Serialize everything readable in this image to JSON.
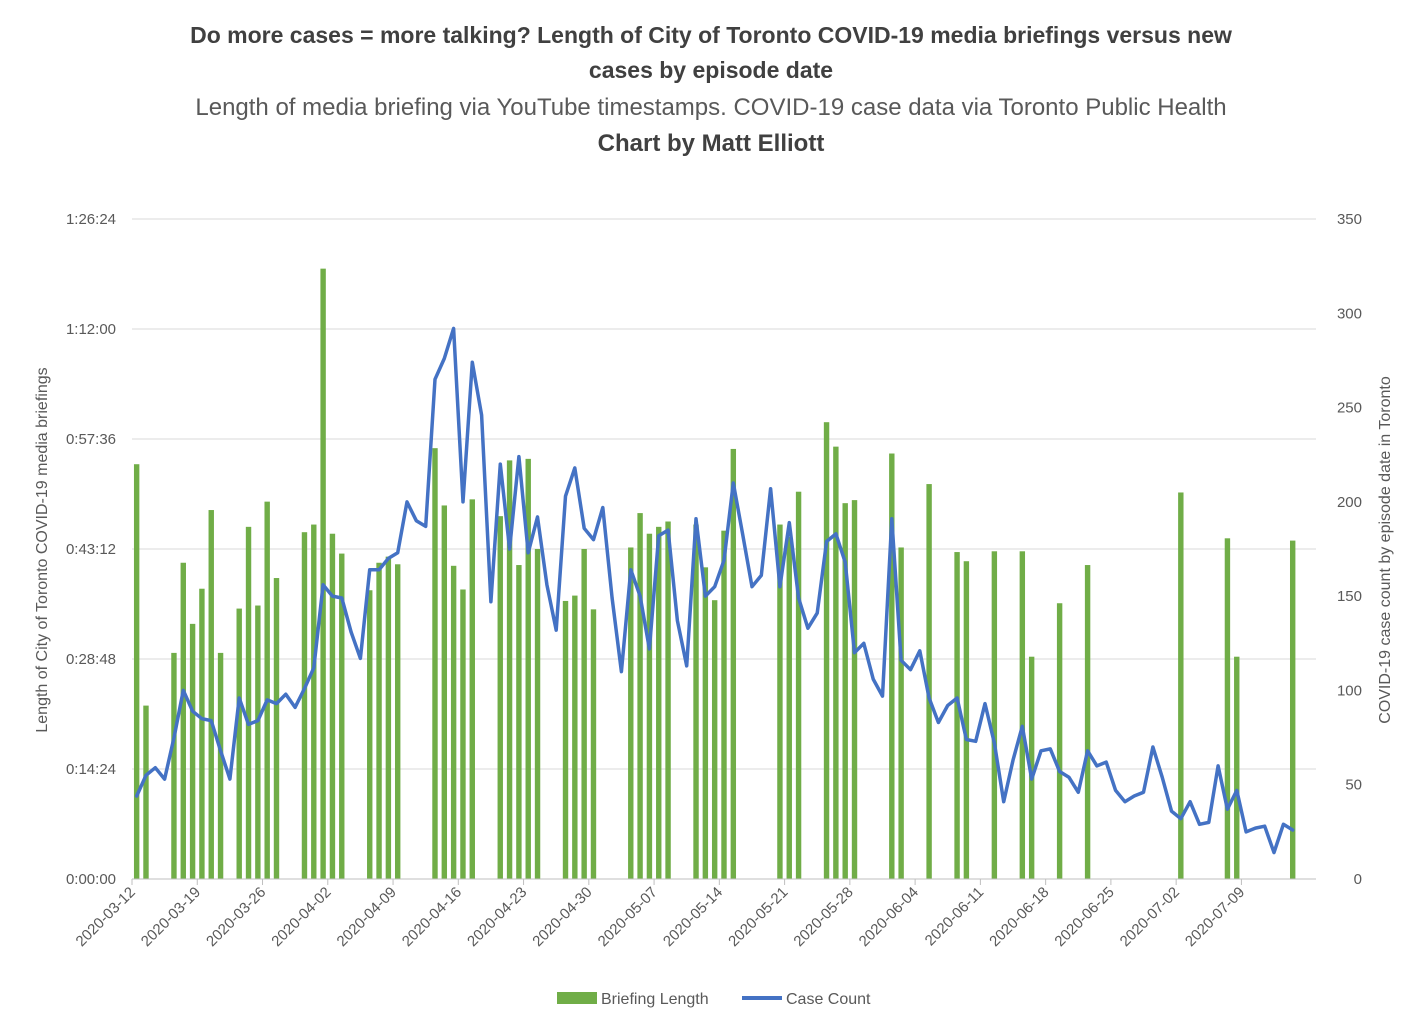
{
  "chart_data": {
    "type": "bar",
    "title": "Do more cases = more talking? Length of City of Toronto COVID-19 media briefings versus new cases by episode date",
    "subtitle": "Length of media briefing via YouTube timestamps. COVID-19 case data via Toronto Public Health",
    "credit": "Chart by Matt Elliott",
    "y_left_label": "Length of City of Toronto COVID-19 media briefings",
    "y_right_label": "COVID-19 case count by episode date in Toronto",
    "y_left_ticks": [
      "0:00:00",
      "0:14:24",
      "0:28:48",
      "0:43:12",
      "0:57:36",
      "1:12:00",
      "1:26:24"
    ],
    "y_left_range_minutes": [
      0,
      86.4
    ],
    "y_right_ticks": [
      "0",
      "50",
      "100",
      "150",
      "200",
      "250",
      "300",
      "350"
    ],
    "y_right_range": [
      0,
      350
    ],
    "x_ticks": [
      "2020-03-12",
      "2020-03-19",
      "2020-03-26",
      "2020-04-02",
      "2020-04-09",
      "2020-04-16",
      "2020-04-23",
      "2020-04-30",
      "2020-05-07",
      "2020-05-14",
      "2020-05-21",
      "2020-05-28",
      "2020-06-04",
      "2020-06-11",
      "2020-06-18",
      "2020-06-25",
      "2020-07-02",
      "2020-07-09"
    ],
    "x_range": [
      "2020-03-12",
      "2020-07-16"
    ],
    "grid": true,
    "legend_position": "bottom",
    "colors": {
      "bars": "#70ad47",
      "line": "#4472c4",
      "grid": "#d9d9d9",
      "axis": "#bfbfbf"
    },
    "series": [
      {
        "name": "Briefing Length",
        "type": "bar",
        "axis": "left",
        "unit": "minutes",
        "points": [
          [
            "2020-03-12",
            54.3
          ],
          [
            "2020-03-13",
            22.7
          ],
          [
            "2020-03-16",
            29.6
          ],
          [
            "2020-03-17",
            41.4
          ],
          [
            "2020-03-18",
            33.4
          ],
          [
            "2020-03-19",
            38.0
          ],
          [
            "2020-03-20",
            48.3
          ],
          [
            "2020-03-21",
            29.6
          ],
          [
            "2020-03-23",
            35.4
          ],
          [
            "2020-03-24",
            46.1
          ],
          [
            "2020-03-25",
            35.8
          ],
          [
            "2020-03-26",
            49.4
          ],
          [
            "2020-03-27",
            39.4
          ],
          [
            "2020-03-30",
            45.4
          ],
          [
            "2020-03-31",
            46.4
          ],
          [
            "2020-04-01",
            79.9
          ],
          [
            "2020-04-02",
            45.2
          ],
          [
            "2020-04-03",
            42.6
          ],
          [
            "2020-04-06",
            37.8
          ],
          [
            "2020-04-07",
            41.4
          ],
          [
            "2020-04-08",
            42.2
          ],
          [
            "2020-04-09",
            41.2
          ],
          [
            "2020-04-13",
            56.4
          ],
          [
            "2020-04-14",
            48.9
          ],
          [
            "2020-04-15",
            41.0
          ],
          [
            "2020-04-16",
            37.9
          ],
          [
            "2020-04-17",
            49.7
          ],
          [
            "2020-04-20",
            47.5
          ],
          [
            "2020-04-21",
            54.8
          ],
          [
            "2020-04-22",
            41.1
          ],
          [
            "2020-04-23",
            55.0
          ],
          [
            "2020-04-24",
            43.2
          ],
          [
            "2020-04-27",
            36.4
          ],
          [
            "2020-04-28",
            37.1
          ],
          [
            "2020-04-29",
            43.2
          ],
          [
            "2020-04-30",
            35.3
          ],
          [
            "2020-05-04",
            43.4
          ],
          [
            "2020-05-05",
            47.9
          ],
          [
            "2020-05-06",
            45.2
          ],
          [
            "2020-05-07",
            46.1
          ],
          [
            "2020-05-08",
            46.8
          ],
          [
            "2020-05-11",
            46.4
          ],
          [
            "2020-05-12",
            40.8
          ],
          [
            "2020-05-13",
            36.5
          ],
          [
            "2020-05-14",
            45.6
          ],
          [
            "2020-05-15",
            56.3
          ],
          [
            "2020-05-20",
            46.4
          ],
          [
            "2020-05-21",
            44.8
          ],
          [
            "2020-05-22",
            50.7
          ],
          [
            "2020-05-25",
            59.8
          ],
          [
            "2020-05-26",
            56.6
          ],
          [
            "2020-05-27",
            49.2
          ],
          [
            "2020-05-28",
            49.6
          ],
          [
            "2020-06-01",
            55.7
          ],
          [
            "2020-06-02",
            43.4
          ],
          [
            "2020-06-05",
            51.7
          ],
          [
            "2020-06-08",
            42.8
          ],
          [
            "2020-06-09",
            41.6
          ],
          [
            "2020-06-12",
            42.9
          ],
          [
            "2020-06-15",
            42.9
          ],
          [
            "2020-06-16",
            29.1
          ],
          [
            "2020-06-19",
            36.1
          ],
          [
            "2020-06-22",
            41.1
          ],
          [
            "2020-07-02",
            50.6
          ],
          [
            "2020-07-07",
            44.6
          ],
          [
            "2020-07-08",
            29.1
          ],
          [
            "2020-07-14",
            44.3
          ]
        ]
      },
      {
        "name": "Case Count",
        "type": "line",
        "axis": "right",
        "points": [
          [
            "2020-03-12",
            44
          ],
          [
            "2020-03-13",
            55
          ],
          [
            "2020-03-14",
            59
          ],
          [
            "2020-03-15",
            53
          ],
          [
            "2020-03-16",
            75
          ],
          [
            "2020-03-17",
            100
          ],
          [
            "2020-03-18",
            89
          ],
          [
            "2020-03-19",
            85
          ],
          [
            "2020-03-20",
            84
          ],
          [
            "2020-03-21",
            68
          ],
          [
            "2020-03-22",
            53
          ],
          [
            "2020-03-23",
            96
          ],
          [
            "2020-03-24",
            82
          ],
          [
            "2020-03-25",
            84
          ],
          [
            "2020-03-26",
            95
          ],
          [
            "2020-03-27",
            93
          ],
          [
            "2020-03-28",
            98
          ],
          [
            "2020-03-29",
            91
          ],
          [
            "2020-03-30",
            101
          ],
          [
            "2020-03-31",
            112
          ],
          [
            "2020-04-01",
            156
          ],
          [
            "2020-04-02",
            150
          ],
          [
            "2020-04-03",
            149
          ],
          [
            "2020-04-04",
            131
          ],
          [
            "2020-04-05",
            117
          ],
          [
            "2020-04-06",
            164
          ],
          [
            "2020-04-07",
            164
          ],
          [
            "2020-04-08",
            170
          ],
          [
            "2020-04-09",
            173
          ],
          [
            "2020-04-10",
            200
          ],
          [
            "2020-04-11",
            190
          ],
          [
            "2020-04-12",
            187
          ],
          [
            "2020-04-13",
            265
          ],
          [
            "2020-04-14",
            276
          ],
          [
            "2020-04-15",
            292
          ],
          [
            "2020-04-16",
            200
          ],
          [
            "2020-04-17",
            274
          ],
          [
            "2020-04-18",
            246
          ],
          [
            "2020-04-19",
            147
          ],
          [
            "2020-04-20",
            220
          ],
          [
            "2020-04-21",
            175
          ],
          [
            "2020-04-22",
            224
          ],
          [
            "2020-04-23",
            173
          ],
          [
            "2020-04-24",
            192
          ],
          [
            "2020-04-25",
            156
          ],
          [
            "2020-04-26",
            132
          ],
          [
            "2020-04-27",
            203
          ],
          [
            "2020-04-28",
            218
          ],
          [
            "2020-04-29",
            186
          ],
          [
            "2020-04-30",
            180
          ],
          [
            "2020-05-01",
            197
          ],
          [
            "2020-05-02",
            149
          ],
          [
            "2020-05-03",
            110
          ],
          [
            "2020-05-04",
            164
          ],
          [
            "2020-05-05",
            150
          ],
          [
            "2020-05-06",
            122
          ],
          [
            "2020-05-07",
            182
          ],
          [
            "2020-05-08",
            185
          ],
          [
            "2020-05-09",
            137
          ],
          [
            "2020-05-10",
            113
          ],
          [
            "2020-05-11",
            191
          ],
          [
            "2020-05-12",
            150
          ],
          [
            "2020-05-13",
            155
          ],
          [
            "2020-05-14",
            169
          ],
          [
            "2020-05-15",
            210
          ],
          [
            "2020-05-16",
            183
          ],
          [
            "2020-05-17",
            155
          ],
          [
            "2020-05-18",
            161
          ],
          [
            "2020-05-19",
            207
          ],
          [
            "2020-05-20",
            155
          ],
          [
            "2020-05-21",
            189
          ],
          [
            "2020-05-22",
            149
          ],
          [
            "2020-05-23",
            133
          ],
          [
            "2020-05-24",
            141
          ],
          [
            "2020-05-25",
            179
          ],
          [
            "2020-05-26",
            183
          ],
          [
            "2020-05-27",
            168
          ],
          [
            "2020-05-28",
            120
          ],
          [
            "2020-05-29",
            125
          ],
          [
            "2020-05-30",
            106
          ],
          [
            "2020-05-31",
            97
          ],
          [
            "2020-06-01",
            191
          ],
          [
            "2020-06-02",
            116
          ],
          [
            "2020-06-03",
            111
          ],
          [
            "2020-06-04",
            121
          ],
          [
            "2020-06-05",
            96
          ],
          [
            "2020-06-06",
            83
          ],
          [
            "2020-06-07",
            92
          ],
          [
            "2020-06-08",
            96
          ],
          [
            "2020-06-09",
            74
          ],
          [
            "2020-06-10",
            73
          ],
          [
            "2020-06-11",
            93
          ],
          [
            "2020-06-12",
            72
          ],
          [
            "2020-06-13",
            41
          ],
          [
            "2020-06-14",
            63
          ],
          [
            "2020-06-15",
            81
          ],
          [
            "2020-06-16",
            53
          ],
          [
            "2020-06-17",
            68
          ],
          [
            "2020-06-18",
            69
          ],
          [
            "2020-06-19",
            57
          ],
          [
            "2020-06-20",
            54
          ],
          [
            "2020-06-21",
            46
          ],
          [
            "2020-06-22",
            68
          ],
          [
            "2020-06-23",
            60
          ],
          [
            "2020-06-24",
            62
          ],
          [
            "2020-06-25",
            47
          ],
          [
            "2020-06-26",
            41
          ],
          [
            "2020-06-27",
            44
          ],
          [
            "2020-06-28",
            46
          ],
          [
            "2020-06-29",
            70
          ],
          [
            "2020-06-30",
            54
          ],
          [
            "2020-07-01",
            36
          ],
          [
            "2020-07-02",
            32
          ],
          [
            "2020-07-03",
            41
          ],
          [
            "2020-07-04",
            29
          ],
          [
            "2020-07-05",
            30
          ],
          [
            "2020-07-06",
            60
          ],
          [
            "2020-07-07",
            37
          ],
          [
            "2020-07-08",
            47
          ],
          [
            "2020-07-09",
            25
          ],
          [
            "2020-07-10",
            27
          ],
          [
            "2020-07-11",
            28
          ],
          [
            "2020-07-12",
            14
          ],
          [
            "2020-07-13",
            29
          ],
          [
            "2020-07-14",
            26
          ]
        ]
      }
    ]
  }
}
